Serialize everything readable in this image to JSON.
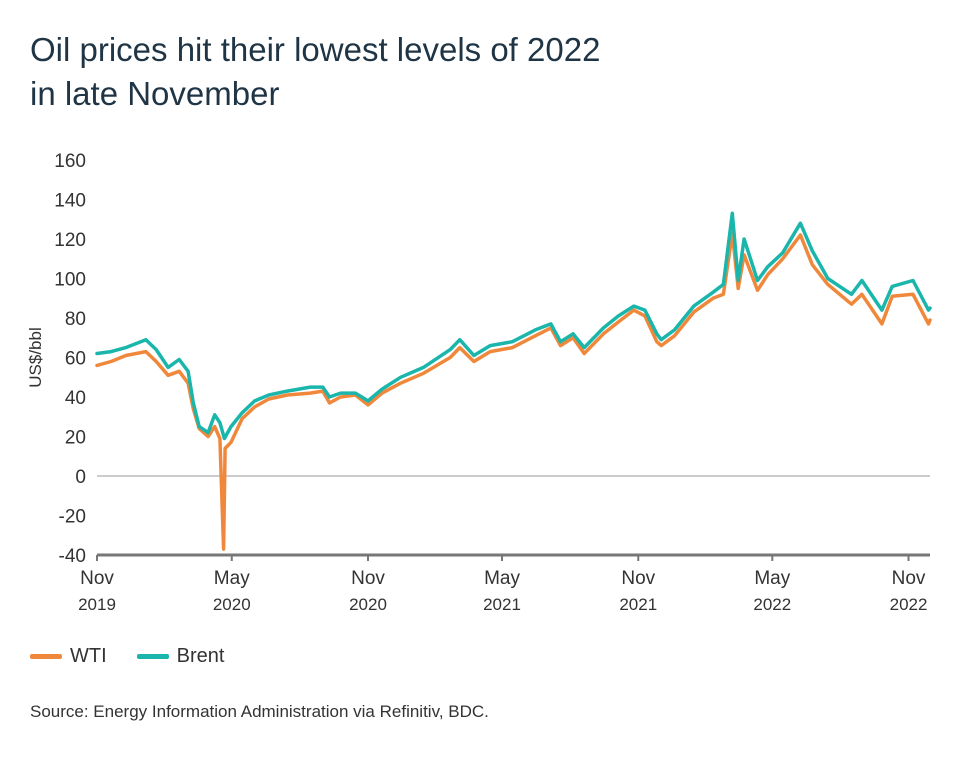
{
  "title_line1": "Oil prices hit their lowest levels of 2022",
  "title_line2": "in late November",
  "source": "Source: Energy Information Administration via Refinitiv, BDC.",
  "colors": {
    "wti": "#f0883c",
    "brent": "#1ab6ac",
    "axis": "#777777",
    "zero": "#bbbbbb"
  },
  "chart_data": {
    "type": "line",
    "title": "Oil prices hit their lowest levels of 2022 in late November",
    "ylabel": "US$/bbl",
    "xlabel": "",
    "ylim": [
      -40,
      160
    ],
    "yticks": [
      160,
      140,
      120,
      100,
      80,
      60,
      40,
      20,
      0,
      -20,
      -40
    ],
    "xlim": [
      "2019-11-01",
      "2022-11-30"
    ],
    "xticks": [
      {
        "date": "2019-11-01",
        "month": "Nov",
        "year": "2019"
      },
      {
        "date": "2020-05-01",
        "month": "May",
        "year": "2020"
      },
      {
        "date": "2020-11-01",
        "month": "Nov",
        "year": "2020"
      },
      {
        "date": "2021-05-01",
        "month": "May",
        "year": "2021"
      },
      {
        "date": "2021-11-01",
        "month": "Nov",
        "year": "2021"
      },
      {
        "date": "2022-05-01",
        "month": "May",
        "year": "2022"
      },
      {
        "date": "2022-11-01",
        "month": "Nov",
        "year": "2022"
      }
    ],
    "grid": false,
    "legend": "bottom-left",
    "series": [
      {
        "name": "WTI",
        "points": [
          [
            "2019-11-01",
            56
          ],
          [
            "2019-11-20",
            58
          ],
          [
            "2019-12-10",
            61
          ],
          [
            "2020-01-06",
            63
          ],
          [
            "2020-01-20",
            58
          ],
          [
            "2020-02-05",
            51
          ],
          [
            "2020-02-20",
            53
          ],
          [
            "2020-03-03",
            47
          ],
          [
            "2020-03-10",
            34
          ],
          [
            "2020-03-18",
            24
          ],
          [
            "2020-03-30",
            20
          ],
          [
            "2020-04-08",
            25
          ],
          [
            "2020-04-15",
            19
          ],
          [
            "2020-04-20",
            -37
          ],
          [
            "2020-04-22",
            14
          ],
          [
            "2020-04-30",
            17
          ],
          [
            "2020-05-15",
            29
          ],
          [
            "2020-06-01",
            35
          ],
          [
            "2020-06-20",
            39
          ],
          [
            "2020-07-15",
            41
          ],
          [
            "2020-08-15",
            42
          ],
          [
            "2020-09-01",
            43
          ],
          [
            "2020-09-10",
            37
          ],
          [
            "2020-09-25",
            40
          ],
          [
            "2020-10-15",
            41
          ],
          [
            "2020-11-01",
            36
          ],
          [
            "2020-11-20",
            42
          ],
          [
            "2020-12-15",
            47
          ],
          [
            "2021-01-15",
            52
          ],
          [
            "2021-02-20",
            60
          ],
          [
            "2021-03-05",
            65
          ],
          [
            "2021-03-24",
            58
          ],
          [
            "2021-04-15",
            63
          ],
          [
            "2021-05-15",
            65
          ],
          [
            "2021-06-15",
            71
          ],
          [
            "2021-07-06",
            75
          ],
          [
            "2021-07-19",
            66
          ],
          [
            "2021-08-05",
            70
          ],
          [
            "2021-08-20",
            62
          ],
          [
            "2021-09-15",
            72
          ],
          [
            "2021-10-05",
            78
          ],
          [
            "2021-10-26",
            84
          ],
          [
            "2021-11-10",
            81
          ],
          [
            "2021-11-26",
            68
          ],
          [
            "2021-12-02",
            66
          ],
          [
            "2021-12-20",
            71
          ],
          [
            "2022-01-15",
            83
          ],
          [
            "2022-02-10",
            90
          ],
          [
            "2022-02-24",
            92
          ],
          [
            "2022-03-08",
            123
          ],
          [
            "2022-03-16",
            95
          ],
          [
            "2022-03-24",
            112
          ],
          [
            "2022-04-11",
            94
          ],
          [
            "2022-04-25",
            102
          ],
          [
            "2022-05-15",
            110
          ],
          [
            "2022-06-08",
            122
          ],
          [
            "2022-06-24",
            107
          ],
          [
            "2022-07-15",
            97
          ],
          [
            "2022-08-16",
            87
          ],
          [
            "2022-08-30",
            92
          ],
          [
            "2022-09-26",
            77
          ],
          [
            "2022-10-10",
            91
          ],
          [
            "2022-11-07",
            92
          ],
          [
            "2022-11-28",
            77
          ],
          [
            "2022-11-30",
            79
          ]
        ]
      },
      {
        "name": "Brent",
        "points": [
          [
            "2019-11-01",
            62
          ],
          [
            "2019-11-20",
            63
          ],
          [
            "2019-12-10",
            65
          ],
          [
            "2020-01-06",
            69
          ],
          [
            "2020-01-20",
            64
          ],
          [
            "2020-02-05",
            55
          ],
          [
            "2020-02-20",
            59
          ],
          [
            "2020-03-03",
            53
          ],
          [
            "2020-03-10",
            37
          ],
          [
            "2020-03-18",
            25
          ],
          [
            "2020-03-30",
            22
          ],
          [
            "2020-04-08",
            31
          ],
          [
            "2020-04-15",
            27
          ],
          [
            "2020-04-21",
            19
          ],
          [
            "2020-04-24",
            21
          ],
          [
            "2020-04-30",
            25
          ],
          [
            "2020-05-15",
            32
          ],
          [
            "2020-06-01",
            38
          ],
          [
            "2020-06-20",
            41
          ],
          [
            "2020-07-15",
            43
          ],
          [
            "2020-08-15",
            45
          ],
          [
            "2020-09-01",
            45
          ],
          [
            "2020-09-10",
            40
          ],
          [
            "2020-09-25",
            42
          ],
          [
            "2020-10-15",
            42
          ],
          [
            "2020-11-01",
            38
          ],
          [
            "2020-11-20",
            44
          ],
          [
            "2020-12-15",
            50
          ],
          [
            "2021-01-15",
            55
          ],
          [
            "2021-02-20",
            64
          ],
          [
            "2021-03-05",
            69
          ],
          [
            "2021-03-24",
            61
          ],
          [
            "2021-04-15",
            66
          ],
          [
            "2021-05-15",
            68
          ],
          [
            "2021-06-15",
            74
          ],
          [
            "2021-07-06",
            77
          ],
          [
            "2021-07-19",
            68
          ],
          [
            "2021-08-05",
            72
          ],
          [
            "2021-08-20",
            65
          ],
          [
            "2021-09-15",
            75
          ],
          [
            "2021-10-05",
            81
          ],
          [
            "2021-10-26",
            86
          ],
          [
            "2021-11-10",
            84
          ],
          [
            "2021-11-26",
            72
          ],
          [
            "2021-12-02",
            69
          ],
          [
            "2021-12-20",
            74
          ],
          [
            "2022-01-15",
            86
          ],
          [
            "2022-02-10",
            93
          ],
          [
            "2022-02-24",
            97
          ],
          [
            "2022-03-08",
            133
          ],
          [
            "2022-03-16",
            99
          ],
          [
            "2022-03-24",
            120
          ],
          [
            "2022-04-11",
            99
          ],
          [
            "2022-04-25",
            106
          ],
          [
            "2022-05-15",
            113
          ],
          [
            "2022-06-08",
            128
          ],
          [
            "2022-06-24",
            114
          ],
          [
            "2022-07-15",
            100
          ],
          [
            "2022-08-16",
            92
          ],
          [
            "2022-08-30",
            99
          ],
          [
            "2022-09-26",
            84
          ],
          [
            "2022-10-10",
            96
          ],
          [
            "2022-11-07",
            99
          ],
          [
            "2022-11-28",
            84
          ],
          [
            "2022-11-30",
            85
          ]
        ]
      }
    ]
  }
}
